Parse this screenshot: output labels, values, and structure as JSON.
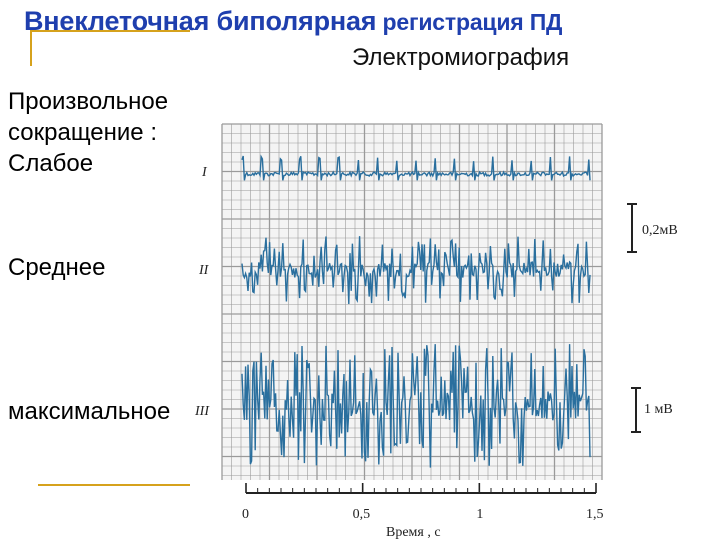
{
  "slide": {
    "title_part1": "Внеклеточная биполярная",
    "title_part2": " регистрация ПД",
    "subtitle": "Электромиография",
    "label_voluntary": "Произвольное сокращение : Слабое",
    "label_medium": "Среднее",
    "label_max": "максимальное"
  },
  "colors": {
    "title": "#1f3fae",
    "accent": "#d6a21c",
    "trace": "#2a6f9e",
    "grid": "#9a9a9a"
  },
  "chart_data": {
    "type": "line",
    "traces": [
      {
        "id": "I",
        "label": "I",
        "amplitude": "weak"
      },
      {
        "id": "II",
        "label": "II",
        "amplitude": "medium"
      },
      {
        "id": "III",
        "label": "III",
        "amplitude": "max"
      }
    ],
    "scale_bars": [
      {
        "trace": "I",
        "label": "0,2мВ"
      },
      {
        "trace": "III",
        "label": "1 мВ"
      }
    ],
    "x": {
      "label": "Время , с",
      "ticks": [
        "0",
        "0,5",
        "1",
        "1,5"
      ],
      "range": [
        0,
        1.5
      ]
    }
  }
}
